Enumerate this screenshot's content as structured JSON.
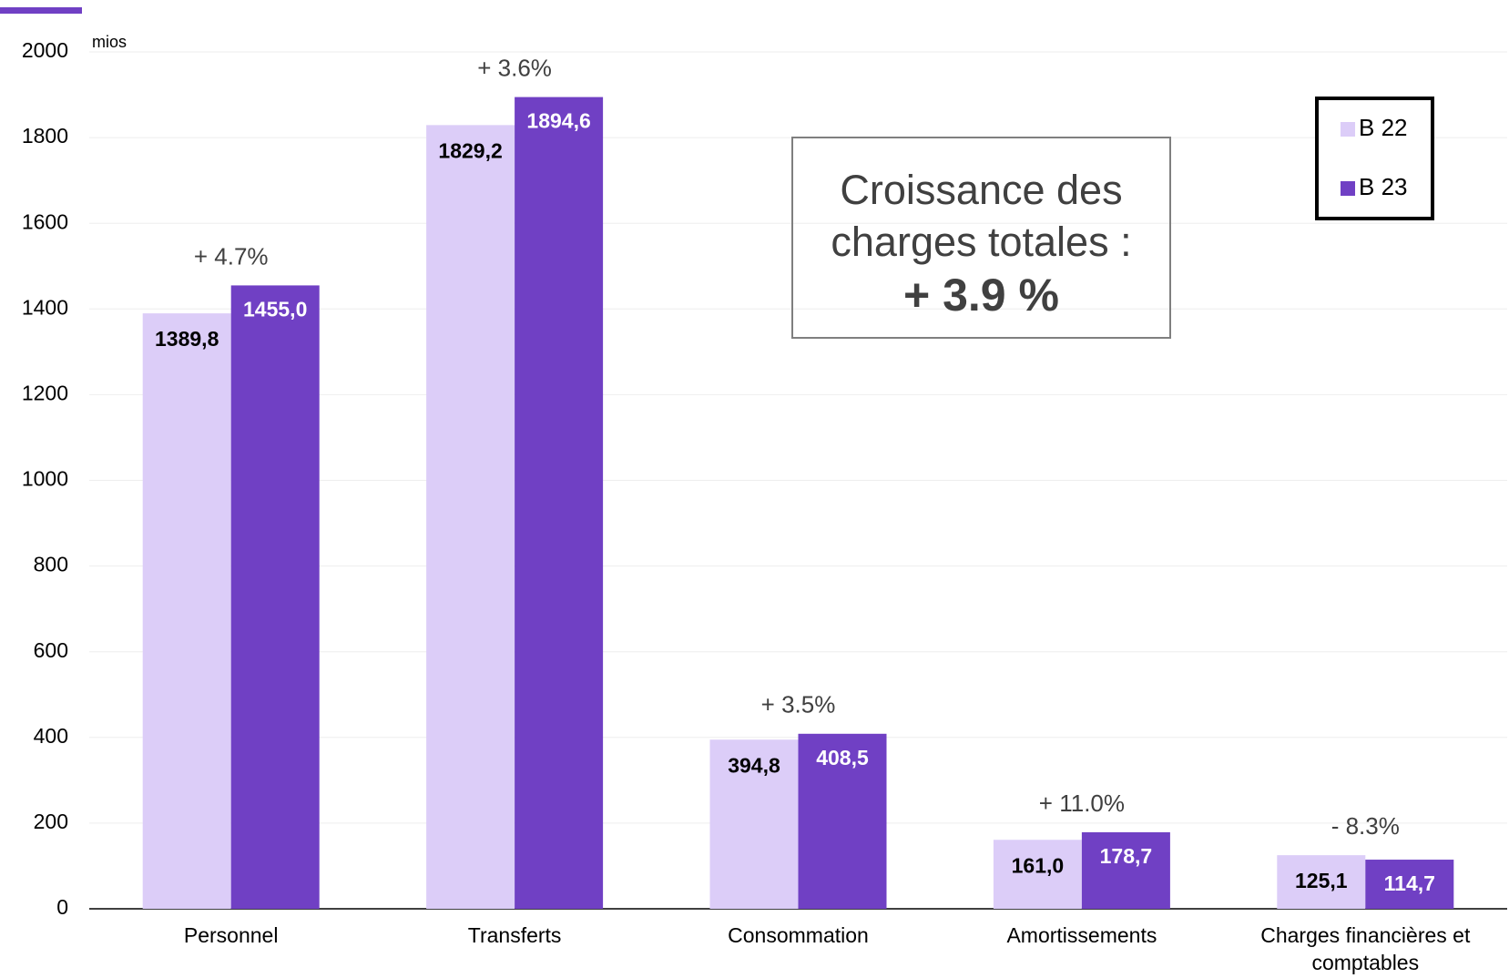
{
  "chart_data": {
    "type": "bar",
    "unit_label": "mios",
    "categories": [
      "Personnel",
      "Transferts",
      "Consommation",
      "Amortissements",
      "Charges financières et comptables"
    ],
    "series": [
      {
        "name": "B 22",
        "color": "#dccdf8",
        "values": [
          1389.8,
          1829.2,
          394.8,
          161.0,
          125.1
        ],
        "value_labels": [
          "1389,8",
          "1829,2",
          "394,8",
          "161,0",
          "125,1"
        ],
        "label_color": "#000000"
      },
      {
        "name": "B 23",
        "color": "#7040c4",
        "values": [
          1455.0,
          1894.6,
          408.5,
          178.7,
          114.7
        ],
        "value_labels": [
          "1455,0",
          "1894,6",
          "408,5",
          "178,7",
          "114,7"
        ],
        "label_color": "#ffffff"
      }
    ],
    "annotations": [
      "+ 4.7%",
      "+ 3.6%",
      "+ 3.5%",
      "+ 11.0%",
      "- 8.3%"
    ],
    "callout": {
      "text": "Croissance des charges totales :",
      "value": "+ 3.9 %"
    },
    "ylim": [
      0,
      2000
    ],
    "yticks": [
      0,
      200,
      400,
      600,
      800,
      1000,
      1200,
      1400,
      1600,
      1800,
      2000
    ],
    "grid": true,
    "legend": "upper right"
  }
}
